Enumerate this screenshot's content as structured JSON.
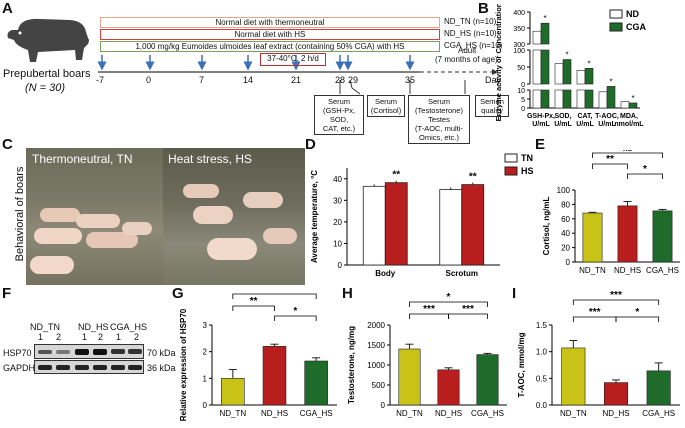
{
  "panel_letters": [
    "A",
    "B",
    "C",
    "D",
    "E",
    "F",
    "G",
    "H",
    "I"
  ],
  "colors": {
    "tn": "#c9c217",
    "hs": "#b81e1e",
    "cga": "#1f6b2a",
    "nd_b": "#ffffff",
    "cga_b": "#1f6b2a",
    "arrow": "#3b6fb6"
  },
  "panelA": {
    "pig_caption": "Prepubertal boars",
    "pig_n": "(N = 30)",
    "bars": [
      {
        "text": "Normal diet with thermoneutral",
        "label": "ND_TN (n=10)"
      },
      {
        "text": "Normal diet with HS",
        "label": "ND_HS (n=10)"
      },
      {
        "text": "1,000 mg/kg Eumoides ulmoides leaf extract (containing 50% CGA) with HS",
        "label": "CGA_HS (n=10)"
      }
    ],
    "hs_box": "37-40°C, 2 h/d",
    "days": [
      "-7",
      "0",
      "7",
      "14",
      "21",
      "28",
      "29",
      "35"
    ],
    "adult": "Adult",
    "adult_sub": "(7 months of age)",
    "day_label": "Day",
    "boxes": [
      {
        "lines": [
          "Serum",
          "(GSH-Px,",
          "SOD,",
          "CAT, etc.)"
        ]
      },
      {
        "lines": [
          "Serum",
          "(Cortisol)"
        ]
      },
      {
        "lines": [
          "Serum",
          "(Testosterone)",
          "Testes",
          "(T-AOC, multi-",
          "Omics, etc.)"
        ]
      },
      {
        "lines": [
          "Semen",
          "quality"
        ]
      }
    ]
  },
  "panelC": {
    "title": "Behavioral of boars",
    "left": "Thermoneutral, TN",
    "right": "Heat stress, HS"
  },
  "panelF": {
    "groups": [
      "ND_TN",
      "ND_HS",
      "CGA_HS"
    ],
    "lanes": [
      "1",
      "2",
      "1",
      "2",
      "1",
      "2"
    ],
    "rows": [
      {
        "name": "HSP70",
        "kda": "70 kDa"
      },
      {
        "name": "GAPDH",
        "kda": "36 kDa"
      }
    ]
  },
  "chart_data": [
    {
      "panel": "B",
      "type": "bar",
      "ylabel": "Enzyme activity or Concentration",
      "categories": [
        "GSH-Px, U/mL",
        "SOD, U/mL",
        "CAT, U/mL",
        "T-AOC, U/mL",
        "MDA, nmol/mL"
      ],
      "series": [
        {
          "name": "ND",
          "values": [
            340,
            60,
            40,
            9,
            3.5
          ]
        },
        {
          "name": "CGA",
          "values": [
            365,
            72,
            46,
            12,
            2.8
          ]
        }
      ],
      "significance": [
        "*",
        "*",
        "*",
        "*",
        "*"
      ],
      "yticks_upper": [
        "400",
        "350",
        "300"
      ],
      "yticks_mid": [
        "100",
        "50",
        "0"
      ],
      "yticks_low": [
        "10",
        "5",
        "0"
      ]
    },
    {
      "panel": "D",
      "type": "bar",
      "ylabel": "Average temperature, °C",
      "categories": [
        "Body",
        "Scrotum"
      ],
      "series": [
        {
          "name": "TN",
          "values": [
            36.5,
            35.0
          ]
        },
        {
          "name": "HS",
          "values": [
            38.2,
            37.3
          ]
        }
      ],
      "significance": [
        "**",
        "**"
      ],
      "ylim": [
        0,
        45
      ],
      "yticks": [
        "0",
        "10",
        "20",
        "30",
        "40"
      ]
    },
    {
      "panel": "E",
      "type": "bar",
      "ylabel": "Cortisol, ng/mL",
      "categories": [
        "ND_TN",
        "ND_HS",
        "CGA_HS"
      ],
      "values": [
        68,
        78,
        71
      ],
      "errors": [
        1,
        6,
        2
      ],
      "ylim": [
        0,
        100
      ],
      "yticks": [
        "0",
        "20",
        "40",
        "60",
        "80",
        "100"
      ],
      "comparisons": [
        {
          "a": 0,
          "b": 1,
          "label": "**"
        },
        {
          "a": 1,
          "b": 2,
          "label": "*"
        },
        {
          "a": 0,
          "b": 2,
          "label": "ns"
        }
      ]
    },
    {
      "panel": "G",
      "type": "bar",
      "ylabel": "Relative expression of HSP70",
      "categories": [
        "ND_TN",
        "ND_HS",
        "CGA_HS"
      ],
      "values": [
        1.0,
        2.2,
        1.65
      ],
      "errors": [
        0.33,
        0.08,
        0.12
      ],
      "ylim": [
        0,
        3
      ],
      "yticks": [
        "0",
        "1",
        "2",
        "3"
      ],
      "comparisons": [
        {
          "a": 0,
          "b": 1,
          "label": "**"
        },
        {
          "a": 1,
          "b": 2,
          "label": "*"
        },
        {
          "a": 0,
          "b": 2,
          "label": "*"
        }
      ]
    },
    {
      "panel": "H",
      "type": "bar",
      "ylabel": "Testosterone, ng/mg",
      "categories": [
        "ND_TN",
        "ND_HS",
        "CGA_HS"
      ],
      "values": [
        1400,
        880,
        1260
      ],
      "errors": [
        120,
        50,
        30
      ],
      "ylim": [
        0,
        2000
      ],
      "yticks": [
        "0",
        "500",
        "1000",
        "1500",
        "2000"
      ],
      "comparisons": [
        {
          "a": 0,
          "b": 1,
          "label": "***"
        },
        {
          "a": 1,
          "b": 2,
          "label": "***"
        },
        {
          "a": 0,
          "b": 2,
          "label": "*"
        }
      ]
    },
    {
      "panel": "I",
      "type": "bar",
      "ylabel": "T-AOC, mmol/mg",
      "categories": [
        "ND_TN",
        "ND_HS",
        "CGA_HS"
      ],
      "values": [
        1.07,
        0.42,
        0.64
      ],
      "errors": [
        0.14,
        0.05,
        0.15
      ],
      "ylim": [
        0,
        1.5
      ],
      "yticks": [
        "0.0",
        "0.5",
        "1.0",
        "1.5"
      ],
      "comparisons": [
        {
          "a": 0,
          "b": 1,
          "label": "***"
        },
        {
          "a": 1,
          "b": 2,
          "label": "*"
        },
        {
          "a": 0,
          "b": 2,
          "label": "***"
        }
      ]
    }
  ]
}
